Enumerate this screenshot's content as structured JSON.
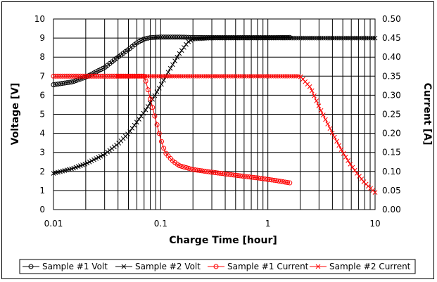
{
  "chart_data": {
    "type": "line",
    "title": "",
    "xlabel": "Charge Time [hour]",
    "ylabel": "Voltage [V]",
    "y2label": "Current [A]",
    "xscale": "log",
    "xlim": [
      0.01,
      10
    ],
    "ylim": [
      0,
      10
    ],
    "y2lim": [
      0,
      0.5
    ],
    "x_ticks": [
      "0.01",
      "0.1",
      "1",
      "10"
    ],
    "y_ticks": [
      "0",
      "1",
      "2",
      "3",
      "4",
      "5",
      "6",
      "7",
      "8",
      "9",
      "10"
    ],
    "y2_ticks": [
      "0.00",
      "0.05",
      "0.10",
      "0.15",
      "0.20",
      "0.25",
      "0.30",
      "0.35",
      "0.40",
      "0.45",
      "0.50"
    ],
    "grid": true,
    "legend_position": "bottom",
    "series": [
      {
        "name": "Sample #1 Volt",
        "axis": "left",
        "color": "#000000",
        "marker": "circle",
        "x": [
          0.01,
          0.015,
          0.02,
          0.03,
          0.04,
          0.05,
          0.06,
          0.07,
          0.08,
          0.1,
          0.15,
          0.2,
          0.3,
          0.5,
          1,
          1.6
        ],
        "y": [
          6.55,
          6.7,
          6.95,
          7.45,
          8.0,
          8.4,
          8.75,
          8.95,
          9.02,
          9.05,
          9.05,
          9.03,
          9.02,
          9.02,
          9.02,
          9.03
        ]
      },
      {
        "name": "Sample #2 Volt",
        "axis": "left",
        "color": "#000000",
        "marker": "x",
        "x": [
          0.01,
          0.015,
          0.02,
          0.03,
          0.04,
          0.05,
          0.06,
          0.07,
          0.08,
          0.1,
          0.12,
          0.15,
          0.18,
          0.2,
          0.3,
          0.5,
          1,
          2,
          3,
          5,
          10
        ],
        "y": [
          1.9,
          2.15,
          2.4,
          2.9,
          3.45,
          4.0,
          4.6,
          5.1,
          5.6,
          6.5,
          7.3,
          8.2,
          8.8,
          8.95,
          9.0,
          9.0,
          9.0,
          9.0,
          9.0,
          9.0,
          9.0
        ]
      },
      {
        "name": "Sample #1 Current",
        "axis": "right",
        "color": "#ff0000",
        "marker": "circle",
        "x": [
          0.01,
          0.015,
          0.02,
          0.03,
          0.04,
          0.05,
          0.06,
          0.07,
          0.073,
          0.08,
          0.09,
          0.1,
          0.11,
          0.13,
          0.15,
          0.2,
          0.3,
          0.5,
          0.8,
          1.2,
          1.6
        ],
        "y": [
          0.35,
          0.35,
          0.35,
          0.35,
          0.35,
          0.35,
          0.35,
          0.35,
          0.335,
          0.29,
          0.235,
          0.185,
          0.15,
          0.127,
          0.115,
          0.105,
          0.098,
          0.09,
          0.083,
          0.076,
          0.07
        ]
      },
      {
        "name": "Sample #2 Current",
        "axis": "right",
        "color": "#ff0000",
        "marker": "x",
        "x": [
          0.04,
          0.06,
          0.1,
          0.2,
          0.5,
          1,
          1.5,
          2,
          2.5,
          3,
          4,
          5,
          6,
          7,
          8,
          10
        ],
        "y": [
          0.35,
          0.35,
          0.35,
          0.35,
          0.35,
          0.35,
          0.35,
          0.35,
          0.32,
          0.27,
          0.2,
          0.15,
          0.115,
          0.09,
          0.07,
          0.045
        ]
      }
    ]
  }
}
